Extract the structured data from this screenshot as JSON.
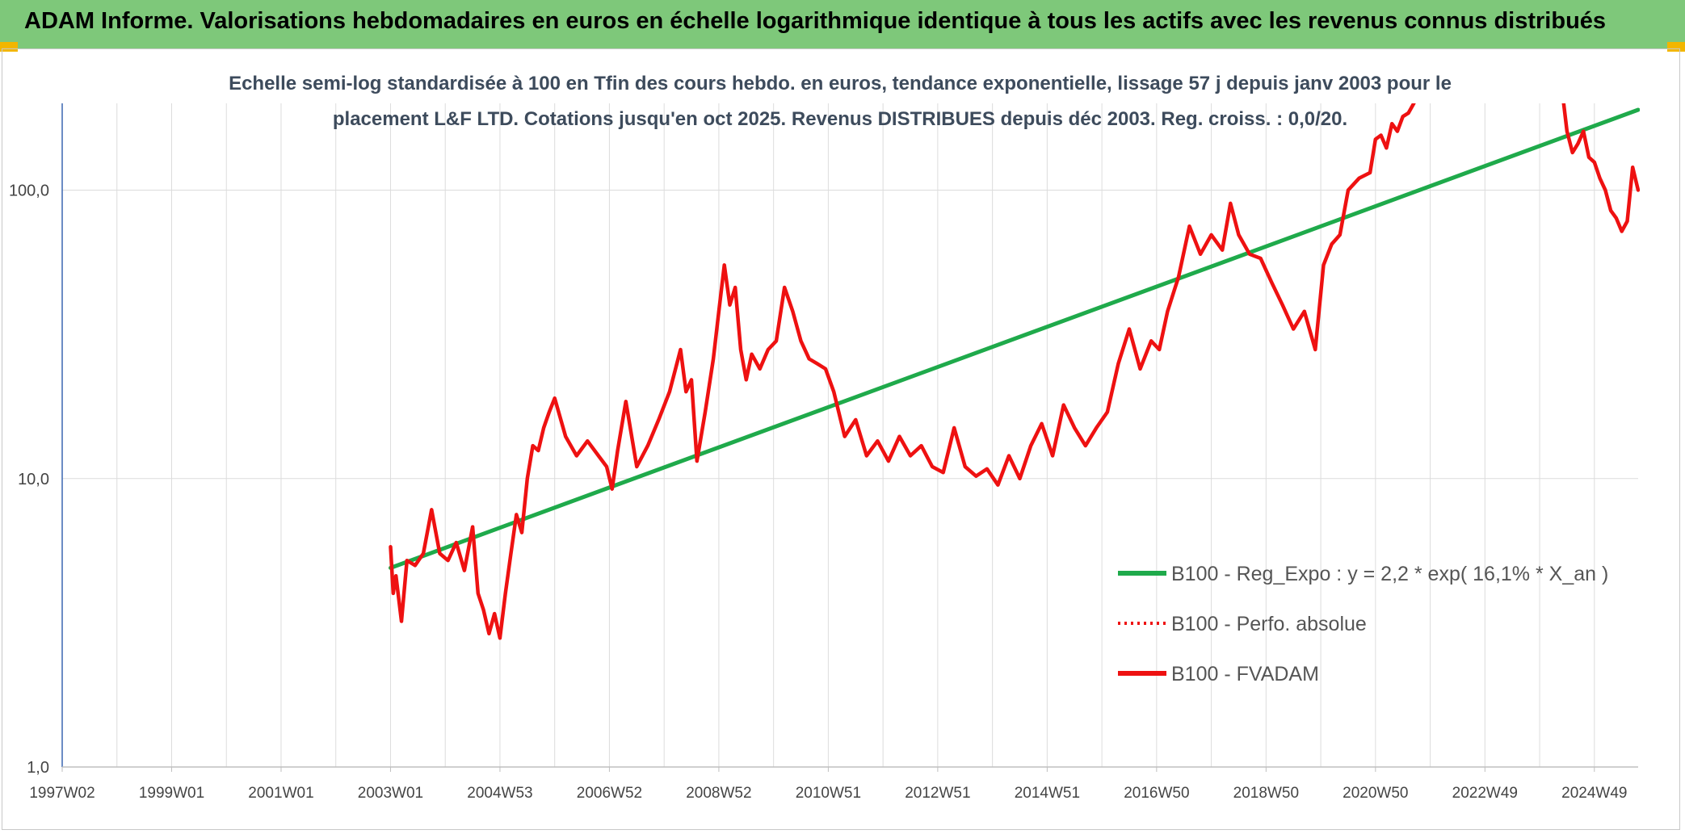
{
  "header": {
    "title": "ADAM Informe. Valorisations hebdomadaires en euros en échelle logarithmique identique à tous les actifs avec les revenus connus distribués"
  },
  "colors": {
    "header_bg": "#7ec87a",
    "corner": "#f2b600",
    "regression": "#1faa4b",
    "price": "#ee1111",
    "grid": "#dcdcdc",
    "axis": "#3a66b0"
  },
  "chart_data": {
    "type": "line",
    "subtitle_line1": "Echelle semi-log standardisée à 100 en Tfin des cours hebdo. en euros, tendance exponentielle, lissage 57 j depuis janv 2003 pour le",
    "subtitle_line2": "placement L&F LTD. Cotations jusqu'en oct 2025. Revenus DISTRIBUES depuis déc 2003. Reg. croiss. : 0,0/20.",
    "y_scale": "log",
    "ylim": [
      1,
      200
    ],
    "xlim": [
      1997.0,
      2025.8
    ],
    "y_ticks": [
      {
        "value": 1,
        "label": "1,0"
      },
      {
        "value": 10,
        "label": "10,0"
      },
      {
        "value": 100,
        "label": "100,0"
      }
    ],
    "x_ticks": [
      {
        "value": 1997.0,
        "label": "1997W02"
      },
      {
        "value": 1999.0,
        "label": "1999W01"
      },
      {
        "value": 2001.0,
        "label": "2001W01"
      },
      {
        "value": 2003.0,
        "label": "2003W01"
      },
      {
        "value": 2005.0,
        "label": "2004W53"
      },
      {
        "value": 2007.0,
        "label": "2006W52"
      },
      {
        "value": 2009.0,
        "label": "2008W52"
      },
      {
        "value": 2011.0,
        "label": "2010W51"
      },
      {
        "value": 2013.0,
        "label": "2012W51"
      },
      {
        "value": 2015.0,
        "label": "2014W51"
      },
      {
        "value": 2017.0,
        "label": "2016W50"
      },
      {
        "value": 2019.0,
        "label": "2018W50"
      },
      {
        "value": 2021.0,
        "label": "2020W50"
      },
      {
        "value": 2023.0,
        "label": "2022W49"
      },
      {
        "value": 2025.0,
        "label": "2024W49"
      }
    ],
    "grid": true,
    "legend_position": "right",
    "series": [
      {
        "name": "B100 - Reg_Expo : y = 2,2 * exp( 16,1% * X_an )",
        "style": "solid",
        "x": [
          2003.0,
          2025.8
        ],
        "y": [
          4.9,
          190
        ]
      },
      {
        "name": "B100 - Perfo. absolue",
        "style": "dotted",
        "x": [],
        "y": []
      },
      {
        "name": "B100 - FVADAM",
        "style": "solid",
        "x": [
          2003.0,
          2003.05,
          2003.1,
          2003.2,
          2003.3,
          2003.45,
          2003.6,
          2003.75,
          2003.9,
          2004.05,
          2004.2,
          2004.35,
          2004.5,
          2004.6,
          2004.7,
          2004.8,
          2004.9,
          2005.0,
          2005.1,
          2005.2,
          2005.3,
          2005.4,
          2005.5,
          2005.6,
          2005.7,
          2005.8,
          2005.9,
          2006.0,
          2006.2,
          2006.4,
          2006.6,
          2006.8,
          2006.95,
          2007.05,
          2007.15,
          2007.3,
          2007.5,
          2007.7,
          2007.9,
          2008.1,
          2008.3,
          2008.4,
          2008.5,
          2008.6,
          2008.75,
          2008.9,
          2009.0,
          2009.1,
          2009.2,
          2009.3,
          2009.4,
          2009.5,
          2009.6,
          2009.75,
          2009.9,
          2010.05,
          2010.2,
          2010.35,
          2010.5,
          2010.65,
          2010.8,
          2010.95,
          2011.1,
          2011.3,
          2011.5,
          2011.7,
          2011.9,
          2012.1,
          2012.3,
          2012.5,
          2012.7,
          2012.9,
          2013.1,
          2013.3,
          2013.5,
          2013.7,
          2013.9,
          2014.1,
          2014.3,
          2014.5,
          2014.7,
          2014.9,
          2015.1,
          2015.3,
          2015.5,
          2015.7,
          2015.9,
          2016.1,
          2016.3,
          2016.5,
          2016.7,
          2016.9,
          2017.05,
          2017.2,
          2017.4,
          2017.6,
          2017.8,
          2018.0,
          2018.2,
          2018.35,
          2018.5,
          2018.7,
          2018.9,
          2019.1,
          2019.3,
          2019.5,
          2019.7,
          2019.9,
          2020.05,
          2020.2,
          2020.35,
          2020.5,
          2020.7,
          2020.9,
          2021.0,
          2021.1,
          2021.2,
          2021.3,
          2021.4,
          2021.5,
          2021.6,
          2021.7,
          2021.8
        ],
        "y": [
          5.8,
          4.0,
          4.6,
          3.2,
          5.2,
          5.0,
          5.5,
          7.8,
          5.5,
          5.2,
          6.0,
          4.8,
          6.8,
          4.0,
          3.5,
          2.9,
          3.4,
          2.8,
          4.0,
          5.5,
          7.5,
          6.5,
          10.0,
          13.0,
          12.5,
          15.0,
          17.0,
          19.0,
          14.0,
          12.0,
          13.5,
          12.0,
          11.0,
          9.2,
          12.5,
          18.5,
          11.0,
          13.0,
          16.0,
          20.0,
          28.0,
          20.0,
          22.0,
          11.5,
          17.0,
          26.0,
          38.0,
          55.0,
          40.0,
          46.0,
          28.0,
          22.0,
          27.0,
          24.0,
          28.0,
          30.0,
          46.0,
          38.0,
          30.0,
          26.0,
          25.0,
          24.0,
          20.0,
          14.0,
          16.0,
          12.0,
          13.5,
          11.5,
          14.0,
          12.0,
          13.0,
          11.0,
          10.5,
          15.0,
          11.0,
          10.2,
          10.8,
          9.5,
          12.0,
          10.0,
          13.0,
          15.5,
          12.0,
          18.0,
          15.0,
          13.0,
          15.0,
          17.0,
          25.0,
          33.0,
          24.0,
          30.0,
          28.0,
          38.0,
          50.0,
          75.0,
          60.0,
          70.0,
          62.0,
          90.0,
          70.0,
          60.0,
          58.0,
          48.0,
          40.0,
          33.0,
          38.0,
          28.0,
          55.0,
          65.0,
          70.0,
          100.0,
          110.0,
          115.0,
          150.0,
          155.0,
          140.0,
          170.0,
          160.0,
          180.0,
          185.0,
          200.0,
          230.0
        ]
      },
      {
        "name": "",
        "style": "solid",
        "x": [
          2024.4,
          2024.5,
          2024.6,
          2024.7,
          2024.8,
          2024.9,
          2025.0,
          2025.1,
          2025.2,
          2025.3,
          2025.4,
          2025.5,
          2025.6,
          2025.7,
          2025.8
        ],
        "y": [
          230.0,
          160.0,
          135.0,
          145.0,
          160.0,
          130.0,
          125.0,
          110.0,
          100.0,
          85.0,
          80.0,
          72.0,
          78.0,
          120.0,
          100.0
        ]
      }
    ]
  }
}
